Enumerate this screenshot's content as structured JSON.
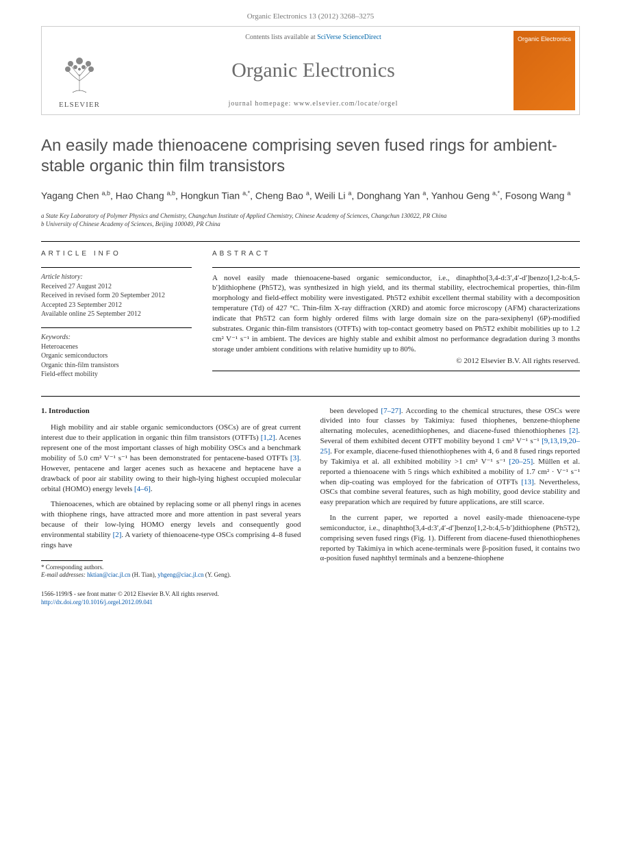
{
  "header": {
    "citation": "Organic Electronics 13 (2012) 3268–3275",
    "contents_prefix": "Contents lists available at ",
    "contents_link": "SciVerse ScienceDirect",
    "journal_name": "Organic Electronics",
    "homepage_prefix": "journal homepage: ",
    "homepage_url": "www.elsevier.com/locate/orgel",
    "publisher": "ELSEVIER",
    "cover_title": "Organic Electronics"
  },
  "article": {
    "title": "An easily made thienoacene comprising seven fused rings for ambient-stable organic thin film transistors",
    "authors_html": "Yagang Chen <sup>a,b</sup>, Hao Chang <sup>a,b</sup>, Hongkun Tian <sup>a,*</sup>, Cheng Bao <sup>a</sup>, Weili Li <sup>a</sup>, Donghang Yan <sup>a</sup>, Yanhou Geng <sup>a,*</sup>, Fosong Wang <sup>a</sup>",
    "affiliations": [
      "a State Key Laboratory of Polymer Physics and Chemistry, Changchun Institute of Applied Chemistry, Chinese Academy of Sciences, Changchun 130022, PR China",
      "b University of Chinese Academy of Sciences, Beijing 100049, PR China"
    ]
  },
  "info": {
    "heading": "ARTICLE INFO",
    "history_label": "Article history:",
    "history": "Received 27 August 2012\nReceived in revised form 20 September 2012\nAccepted 23 September 2012\nAvailable online 25 September 2012",
    "keywords_label": "Keywords:",
    "keywords": "Heteroacenes\nOrganic semiconductors\nOrganic thin-film transistors\nField-effect mobility"
  },
  "abstract": {
    "heading": "ABSTRACT",
    "text": "A novel easily made thienoacene-based organic semiconductor, i.e., dinaphtho[3,4-d:3′,4′-d′]benzo[1,2-b:4,5-b′]dithiophene (Ph5T2), was synthesized in high yield, and its thermal stability, electrochemical properties, thin-film morphology and field-effect mobility were investigated. Ph5T2 exhibit excellent thermal stability with a decomposition temperature (Td) of 427 °C. Thin-film X-ray diffraction (XRD) and atomic force microscopy (AFM) characterizations indicate that Ph5T2 can form highly ordered films with large domain size on the para-sexiphenyl (6P)-modified substrates. Organic thin-film transistors (OTFTs) with top-contact geometry based on Ph5T2 exhibit mobilities up to 1.2 cm² V⁻¹ s⁻¹ in ambient. The devices are highly stable and exhibit almost no performance degradation during 3 months storage under ambient conditions with relative humidity up to 80%.",
    "copyright": "© 2012 Elsevier B.V. All rights reserved."
  },
  "body": {
    "section_heading": "1. Introduction",
    "col1_p1": "High mobility and air stable organic semiconductors (OSCs) are of great current interest due to their application in organic thin film transistors (OTFTs) [1,2]. Acenes represent one of the most important classes of high mobility OSCs and a benchmark mobility of 5.0 cm² V⁻¹ s⁻¹ has been demonstrated for pentacene-based OTFTs [3]. However, pentacene and larger acenes such as hexacene and heptacene have a drawback of poor air stability owing to their high-lying highest occupied molecular orbital (HOMO) energy levels [4–6].",
    "col1_p2": "Thienoacenes, which are obtained by replacing some or all phenyl rings in acenes with thiophene rings, have attracted more and more attention in past several years because of their low-lying HOMO energy levels and consequently good environmental stability [2]. A variety of thienoacene-type OSCs comprising 4–8 fused rings have",
    "col2_p1": "been developed [7–27]. According to the chemical structures, these OSCs were divided into four classes by Takimiya: fused thiophenes, benzene-thiophene alternating molecules, acenedithiophenes, and diacene-fused thienothiophenes [2]. Several of them exhibited decent OTFT mobility beyond 1 cm² V⁻¹ s⁻¹ [9,13,19,20–25]. For example, diacene-fused thienothiophenes with 4, 6 and 8 fused rings reported by Takimiya et al. all exhibited mobility >1 cm² V⁻¹ s⁻¹ [20–25]. Müllen et al. reported a thienoacene with 5 rings which exhibited a mobility of 1.7 cm² · V⁻¹ s⁻¹ when dip-coating was employed for the fabrication of OTFTs [13]. Nevertheless, OSCs that combine several features, such as high mobility, good device stability and easy preparation which are required by future applications, are still scarce.",
    "col2_p2": "In the current paper, we reported a novel easily-made thienoacene-type semiconductor, i.e., dinaphtho[3,4-d:3′,4′-d′]benzo[1,2-b:4,5-b′]dithiophene (Ph5T2), comprising seven fused rings (Fig. 1). Different from diacene-fused thienothiophenes reported by Takimiya in which acene-terminals were β-position fused, it contains two α-position fused naphthyl terminals and a benzene-thiophene"
  },
  "footnotes": {
    "corresponding": "* Corresponding authors.",
    "email_label": "E-mail addresses: ",
    "email1": "hktian@ciac.jl.cn",
    "email1_who": " (H. Tian), ",
    "email2": "yhgeng@ciac.jl.cn",
    "email2_who": " (Y. Geng)."
  },
  "footer": {
    "line1": "1566-1199/$ - see front matter © 2012 Elsevier B.V. All rights reserved.",
    "doi": "http://dx.doi.org/10.1016/j.orgel.2012.09.041"
  },
  "colors": {
    "link": "#0055aa",
    "text": "#2a2a2a",
    "gray": "#6b6b6b",
    "cover_bg": "#e87817"
  }
}
